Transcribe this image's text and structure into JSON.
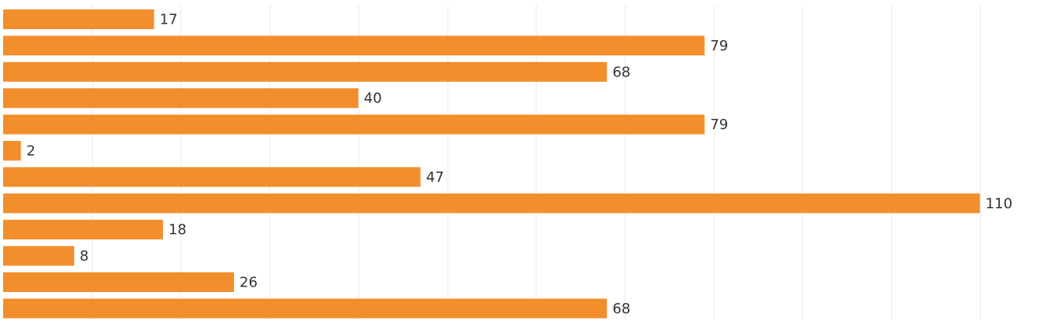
{
  "colors": {
    "bar": "#f28e2b",
    "grid": "#ebebeb",
    "label": "#333333",
    "background": "#ffffff"
  },
  "chart_data": {
    "type": "bar",
    "orientation": "horizontal",
    "values": [
      17,
      79,
      68,
      40,
      79,
      2,
      47,
      110,
      18,
      8,
      26,
      68
    ],
    "data_labels": [
      "17",
      "79",
      "68",
      "40",
      "79",
      "2",
      "47",
      "110",
      "18",
      "8",
      "26",
      "68"
    ],
    "xlim": [
      0,
      115
    ],
    "grid_step": 10,
    "grid": true,
    "legend": "none"
  }
}
